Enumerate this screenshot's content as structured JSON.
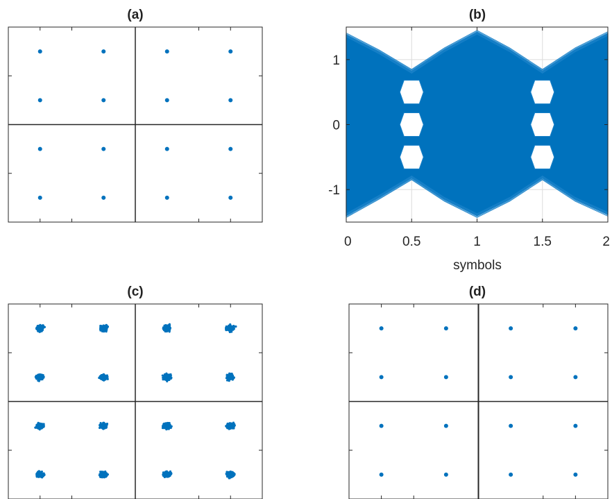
{
  "colors": {
    "data": "#0072BD",
    "axis": "#262626",
    "grid": "#DCDCDC",
    "background": "#FFFFFF"
  },
  "chart_data": [
    {
      "type": "scatter",
      "title": "(a)",
      "xlabel": "",
      "ylabel": "",
      "xlim": [
        -4,
        4
      ],
      "ylim": [
        -4,
        4
      ],
      "grid": false,
      "axes_lines": true,
      "tick_labels": false,
      "spread": 0,
      "x": [
        -3,
        -1,
        1,
        3,
        -3,
        -1,
        1,
        3,
        -3,
        -1,
        1,
        3,
        -3,
        -1,
        1,
        3
      ],
      "y": [
        3,
        3,
        3,
        3,
        1,
        1,
        1,
        1,
        -1,
        -1,
        -1,
        -1,
        -3,
        -3,
        -3,
        -3
      ]
    },
    {
      "type": "line",
      "title": "(b)",
      "xlabel": "symbols",
      "ylabel": "",
      "xlim": [
        0,
        2
      ],
      "ylim": [
        -1.5,
        1.5
      ],
      "xticks": [
        "0",
        "0.5",
        "1",
        "1.5",
        "2"
      ],
      "yticks": [
        "1",
        "0",
        "-1"
      ],
      "grid": true,
      "description_levels": [
        -1.2,
        -0.5,
        0,
        0.5,
        1.2
      ],
      "eye_center_levels": [
        -0.5,
        0,
        0.5
      ],
      "eye_centers_x": [
        0.5,
        1.5
      ]
    },
    {
      "type": "scatter",
      "title": "(c)",
      "xlabel": "",
      "ylabel": "",
      "xlim": [
        -4,
        4
      ],
      "ylim": [
        -4,
        4
      ],
      "grid": false,
      "axes_lines": true,
      "tick_labels": false,
      "spread": 0.12,
      "x": [
        -3,
        -1,
        1,
        3,
        -3,
        -1,
        1,
        3,
        -3,
        -1,
        1,
        3,
        -3,
        -1,
        1,
        3
      ],
      "y": [
        3,
        3,
        3,
        3,
        1,
        1,
        1,
        1,
        -1,
        -1,
        -1,
        -1,
        -3,
        -3,
        -3,
        -3
      ]
    },
    {
      "type": "scatter",
      "title": "(d)",
      "xlabel": "",
      "ylabel": "",
      "xlim": [
        -4,
        4
      ],
      "ylim": [
        -4,
        4
      ],
      "grid": false,
      "axes_lines": true,
      "tick_labels": false,
      "spread": 0,
      "x": [
        -3,
        -1,
        1,
        3,
        -3,
        -1,
        1,
        3,
        -3,
        -1,
        1,
        3,
        -3,
        -1,
        1,
        3
      ],
      "y": [
        3,
        3,
        3,
        3,
        1,
        1,
        1,
        1,
        -1,
        -1,
        -1,
        -1,
        -3,
        -3,
        -3,
        -3
      ]
    }
  ]
}
